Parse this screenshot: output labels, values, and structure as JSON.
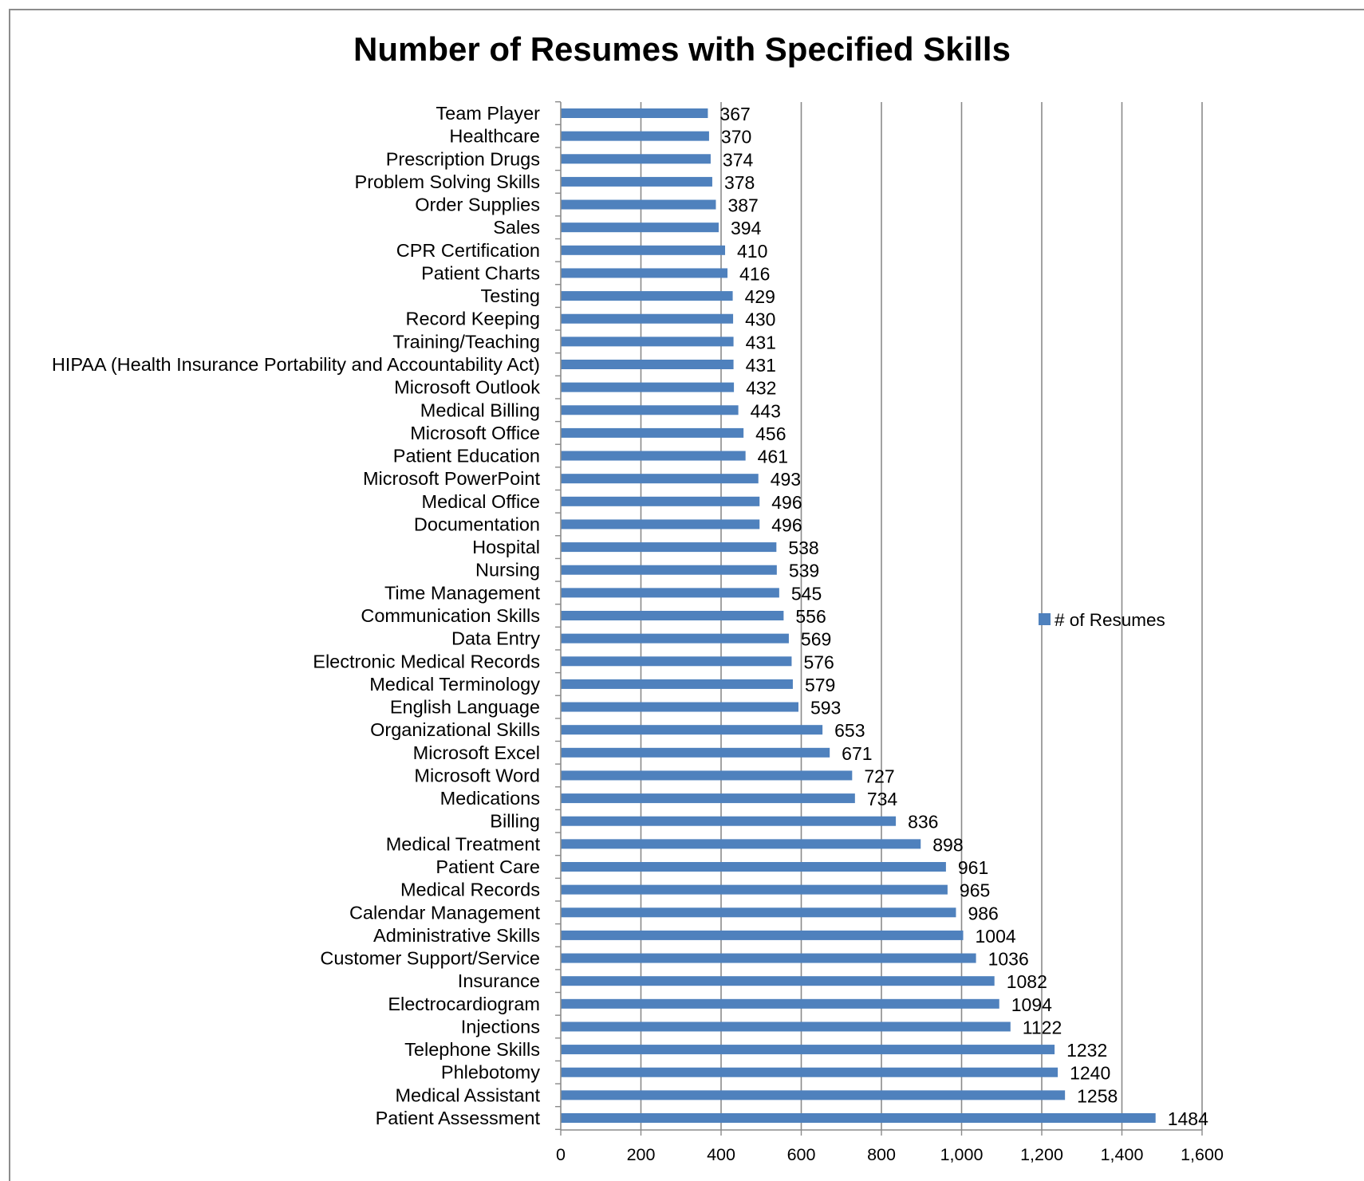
{
  "chart_data": {
    "type": "bar",
    "orientation": "horizontal",
    "title": "Number of Resumes with Specified Skills",
    "xlabel": "",
    "ylabel": "",
    "xlim": [
      0,
      1600
    ],
    "xticks": [
      0,
      200,
      400,
      600,
      800,
      1000,
      1200,
      1400,
      1600
    ],
    "xtick_labels": [
      "0",
      "200",
      "400",
      "600",
      "800",
      "1,000",
      "1,200",
      "1,400",
      "1,600"
    ],
    "grid": "vertical",
    "legend": "right",
    "bar_color": "#4f81bd",
    "categories": [
      "Team Player",
      "Healthcare",
      "Prescription Drugs",
      "Problem Solving Skills",
      "Order Supplies",
      "Sales",
      "CPR Certification",
      "Patient Charts",
      "Testing",
      "Record Keeping",
      "Training/Teaching",
      "HIPAA (Health Insurance Portability and Accountability Act)",
      "Microsoft Outlook",
      "Medical Billing",
      "Microsoft Office",
      "Patient Education",
      "Microsoft PowerPoint",
      "Medical Office",
      "Documentation",
      "Hospital",
      "Nursing",
      "Time Management",
      "Communication Skills",
      "Data Entry",
      "Electronic Medical Records",
      "Medical Terminology",
      "English Language",
      "Organizational Skills",
      "Microsoft Excel",
      "Microsoft Word",
      "Medications",
      "Billing",
      "Medical Treatment",
      "Patient Care",
      "Medical Records",
      "Calendar Management",
      "Administrative Skills",
      "Customer Support/Service",
      "Insurance",
      "Electrocardiogram",
      "Injections",
      "Telephone Skills",
      "Phlebotomy",
      "Medical Assistant",
      "Patient Assessment"
    ],
    "series": [
      {
        "name": "# of Resumes",
        "values": [
          367,
          370,
          374,
          378,
          387,
          394,
          410,
          416,
          429,
          430,
          431,
          431,
          432,
          443,
          456,
          461,
          493,
          496,
          496,
          538,
          539,
          545,
          556,
          569,
          576,
          579,
          593,
          653,
          671,
          727,
          734,
          836,
          898,
          961,
          965,
          986,
          1004,
          1036,
          1082,
          1094,
          1122,
          1232,
          1240,
          1258,
          1484
        ]
      }
    ]
  }
}
